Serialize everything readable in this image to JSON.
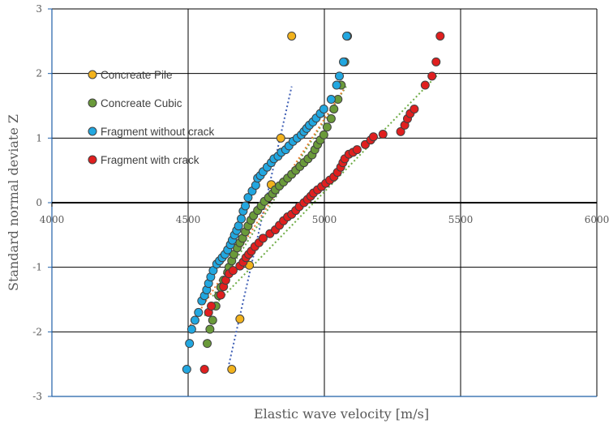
{
  "chart_data": {
    "type": "scatter",
    "xlabel": "Elastic wave velocity  [m/s]",
    "ylabel": "Standard normal deviate Z",
    "xlim": [
      4000,
      6000
    ],
    "ylim": [
      -3,
      3
    ],
    "x_ticks": [
      "4000",
      "4500",
      "5000",
      "5500",
      "6000"
    ],
    "y_ticks": [
      "3",
      "2",
      "1",
      "0",
      "-1",
      "-2",
      "-3"
    ],
    "grid": true,
    "legend_position": "left",
    "series": [
      {
        "name": "Concreate Pile",
        "color": "#f2b21c",
        "trend_color": "#3f5fb5",
        "trend": [
          [
            4650,
            -2.5
          ],
          [
            4880,
            1.8
          ]
        ],
        "points": [
          [
            4660,
            -2.58
          ],
          [
            4690,
            -1.8
          ],
          [
            4725,
            -0.97
          ],
          [
            4805,
            0.28
          ],
          [
            4840,
            1.0
          ],
          [
            4880,
            2.58
          ]
        ]
      },
      {
        "name": "Concreate Cubic",
        "color": "#6a9a3a",
        "trend_color": "#6aa84f",
        "trend": [
          [
            4590,
            -1.45
          ],
          [
            5080,
            1.8
          ]
        ],
        "points": [
          [
            4570,
            -2.18
          ],
          [
            4580,
            -1.96
          ],
          [
            4590,
            -1.82
          ],
          [
            4602,
            -1.6
          ],
          [
            4612,
            -1.44
          ],
          [
            4620,
            -1.31
          ],
          [
            4630,
            -1.2
          ],
          [
            4645,
            -1.08
          ],
          [
            4650,
            -1.0
          ],
          [
            4660,
            -0.9
          ],
          [
            4668,
            -0.8
          ],
          [
            4680,
            -0.7
          ],
          [
            4690,
            -0.62
          ],
          [
            4700,
            -0.55
          ],
          [
            4710,
            -0.45
          ],
          [
            4720,
            -0.36
          ],
          [
            4730,
            -0.27
          ],
          [
            4740,
            -0.2
          ],
          [
            4755,
            -0.12
          ],
          [
            4768,
            -0.05
          ],
          [
            4780,
            0.02
          ],
          [
            4795,
            0.08
          ],
          [
            4810,
            0.14
          ],
          [
            4820,
            0.2
          ],
          [
            4835,
            0.26
          ],
          [
            4850,
            0.32
          ],
          [
            4865,
            0.38
          ],
          [
            4880,
            0.44
          ],
          [
            4895,
            0.5
          ],
          [
            4910,
            0.56
          ],
          [
            4925,
            0.62
          ],
          [
            4940,
            0.68
          ],
          [
            4955,
            0.74
          ],
          [
            4965,
            0.82
          ],
          [
            4975,
            0.9
          ],
          [
            4985,
            0.97
          ],
          [
            4998,
            1.05
          ],
          [
            5010,
            1.17
          ],
          [
            5025,
            1.3
          ],
          [
            5035,
            1.45
          ],
          [
            5050,
            1.6
          ],
          [
            5062,
            1.82
          ],
          [
            5075,
            2.18
          ],
          [
            5085,
            2.58
          ]
        ]
      },
      {
        "name": "Fragment without crack",
        "color": "#22a7e0",
        "trend_color": "#ed7d31",
        "trend": [
          [
            4500,
            -1.95
          ],
          [
            5070,
            1.75
          ]
        ],
        "points": [
          [
            4495,
            -2.58
          ],
          [
            4505,
            -2.18
          ],
          [
            4513,
            -1.96
          ],
          [
            4525,
            -1.82
          ],
          [
            4538,
            -1.7
          ],
          [
            4550,
            -1.52
          ],
          [
            4560,
            -1.44
          ],
          [
            4568,
            -1.35
          ],
          [
            4575,
            -1.25
          ],
          [
            4583,
            -1.15
          ],
          [
            4592,
            -1.05
          ],
          [
            4605,
            -0.95
          ],
          [
            4615,
            -0.9
          ],
          [
            4625,
            -0.85
          ],
          [
            4635,
            -0.8
          ],
          [
            4645,
            -0.73
          ],
          [
            4655,
            -0.65
          ],
          [
            4662,
            -0.58
          ],
          [
            4670,
            -0.5
          ],
          [
            4678,
            -0.43
          ],
          [
            4685,
            -0.36
          ],
          [
            4695,
            -0.25
          ],
          [
            4702,
            -0.13
          ],
          [
            4710,
            -0.05
          ],
          [
            4720,
            0.08
          ],
          [
            4735,
            0.18
          ],
          [
            4748,
            0.27
          ],
          [
            4755,
            0.38
          ],
          [
            4765,
            0.42
          ],
          [
            4775,
            0.48
          ],
          [
            4790,
            0.55
          ],
          [
            4805,
            0.62
          ],
          [
            4815,
            0.68
          ],
          [
            4830,
            0.72
          ],
          [
            4842,
            0.78
          ],
          [
            4858,
            0.82
          ],
          [
            4870,
            0.88
          ],
          [
            4885,
            0.95
          ],
          [
            4900,
            1.0
          ],
          [
            4915,
            1.05
          ],
          [
            4925,
            1.1
          ],
          [
            4935,
            1.15
          ],
          [
            4945,
            1.2
          ],
          [
            4958,
            1.25
          ],
          [
            4970,
            1.31
          ],
          [
            4985,
            1.38
          ],
          [
            4998,
            1.45
          ],
          [
            5025,
            1.6
          ],
          [
            5045,
            1.82
          ],
          [
            5055,
            1.96
          ],
          [
            5070,
            2.18
          ],
          [
            5082,
            2.58
          ]
        ]
      },
      {
        "name": "Fragment with crack",
        "color": "#e01f1f",
        "trend_color": "#70ad47",
        "trend": [
          [
            4560,
            -1.75
          ],
          [
            5420,
            2.0
          ]
        ],
        "points": [
          [
            4560,
            -2.58
          ],
          [
            4575,
            -1.7
          ],
          [
            4585,
            -1.6
          ],
          [
            4620,
            -1.43
          ],
          [
            4630,
            -1.3
          ],
          [
            4638,
            -1.2
          ],
          [
            4650,
            -1.1
          ],
          [
            4665,
            -1.05
          ],
          [
            4690,
            -0.98
          ],
          [
            4702,
            -0.92
          ],
          [
            4712,
            -0.85
          ],
          [
            4722,
            -0.8
          ],
          [
            4732,
            -0.75
          ],
          [
            4745,
            -0.68
          ],
          [
            4760,
            -0.62
          ],
          [
            4775,
            -0.55
          ],
          [
            4800,
            -0.48
          ],
          [
            4820,
            -0.42
          ],
          [
            4835,
            -0.35
          ],
          [
            4850,
            -0.28
          ],
          [
            4865,
            -0.22
          ],
          [
            4880,
            -0.18
          ],
          [
            4895,
            -0.12
          ],
          [
            4908,
            -0.06
          ],
          [
            4925,
            0.0
          ],
          [
            4938,
            0.05
          ],
          [
            4950,
            0.1
          ],
          [
            4960,
            0.15
          ],
          [
            4975,
            0.2
          ],
          [
            4990,
            0.25
          ],
          [
            5005,
            0.3
          ],
          [
            5020,
            0.35
          ],
          [
            5035,
            0.4
          ],
          [
            5048,
            0.47
          ],
          [
            5060,
            0.55
          ],
          [
            5068,
            0.62
          ],
          [
            5075,
            0.68
          ],
          [
            5090,
            0.75
          ],
          [
            5105,
            0.78
          ],
          [
            5120,
            0.82
          ],
          [
            5150,
            0.9
          ],
          [
            5170,
            0.97
          ],
          [
            5180,
            1.02
          ],
          [
            5215,
            1.06
          ],
          [
            5280,
            1.1
          ],
          [
            5295,
            1.2
          ],
          [
            5305,
            1.3
          ],
          [
            5315,
            1.38
          ],
          [
            5330,
            1.45
          ],
          [
            5370,
            1.82
          ],
          [
            5395,
            1.96
          ],
          [
            5410,
            2.18
          ],
          [
            5425,
            2.58
          ]
        ]
      }
    ]
  }
}
